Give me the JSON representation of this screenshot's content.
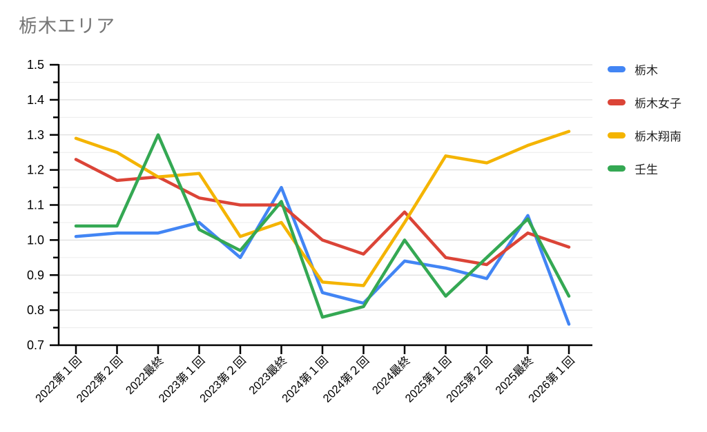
{
  "title": "栃木エリア",
  "colors": {
    "title_text": "#757575",
    "axis": "#000000",
    "grid_major": "#d6d6d6",
    "grid_minor": "#ececec",
    "tick_label": "#000000",
    "legend_text": "#212121",
    "background": "#ffffff"
  },
  "chart_data": {
    "type": "line",
    "title": "栃木エリア",
    "categories": [
      "2022第１回",
      "2022第２回",
      "2022最終",
      "2023第１回",
      "2023第２回",
      "2023最終",
      "2024第１回",
      "2024第２回",
      "2024最終",
      "2025第１回",
      "2025第２回",
      "2025最終",
      "2026第１回"
    ],
    "series": [
      {
        "name": "栃木",
        "color": "#4285F4",
        "values": [
          1.01,
          1.02,
          1.02,
          1.05,
          0.95,
          1.15,
          0.85,
          0.82,
          0.94,
          0.92,
          0.89,
          1.07,
          0.76
        ]
      },
      {
        "name": "栃木女子",
        "color": "#DB4437",
        "values": [
          1.23,
          1.17,
          1.18,
          1.12,
          1.1,
          1.1,
          1.0,
          0.96,
          1.08,
          0.95,
          0.93,
          1.02,
          0.98
        ]
      },
      {
        "name": "栃木翔南",
        "color": "#F4B400",
        "values": [
          1.29,
          1.25,
          1.18,
          1.19,
          1.01,
          1.05,
          0.88,
          0.87,
          1.05,
          1.24,
          1.22,
          1.27,
          1.31
        ]
      },
      {
        "name": "壬生",
        "color": "#34A853",
        "values": [
          1.04,
          1.04,
          1.3,
          1.03,
          0.97,
          1.11,
          0.78,
          0.81,
          1.0,
          0.84,
          0.95,
          1.06,
          0.84
        ]
      }
    ],
    "xlabel": "",
    "ylabel": "",
    "ylim": [
      0.7,
      1.5
    ],
    "y_major_step": 0.1,
    "y_minor_step": 0.05,
    "y_tick_labels": [
      "0.7",
      "0.8",
      "0.9",
      "1.0",
      "1.1",
      "1.2",
      "1.3",
      "1.4",
      "1.5"
    ],
    "grid": true,
    "legend_position": "right",
    "x_label_rotation_deg": 45
  }
}
